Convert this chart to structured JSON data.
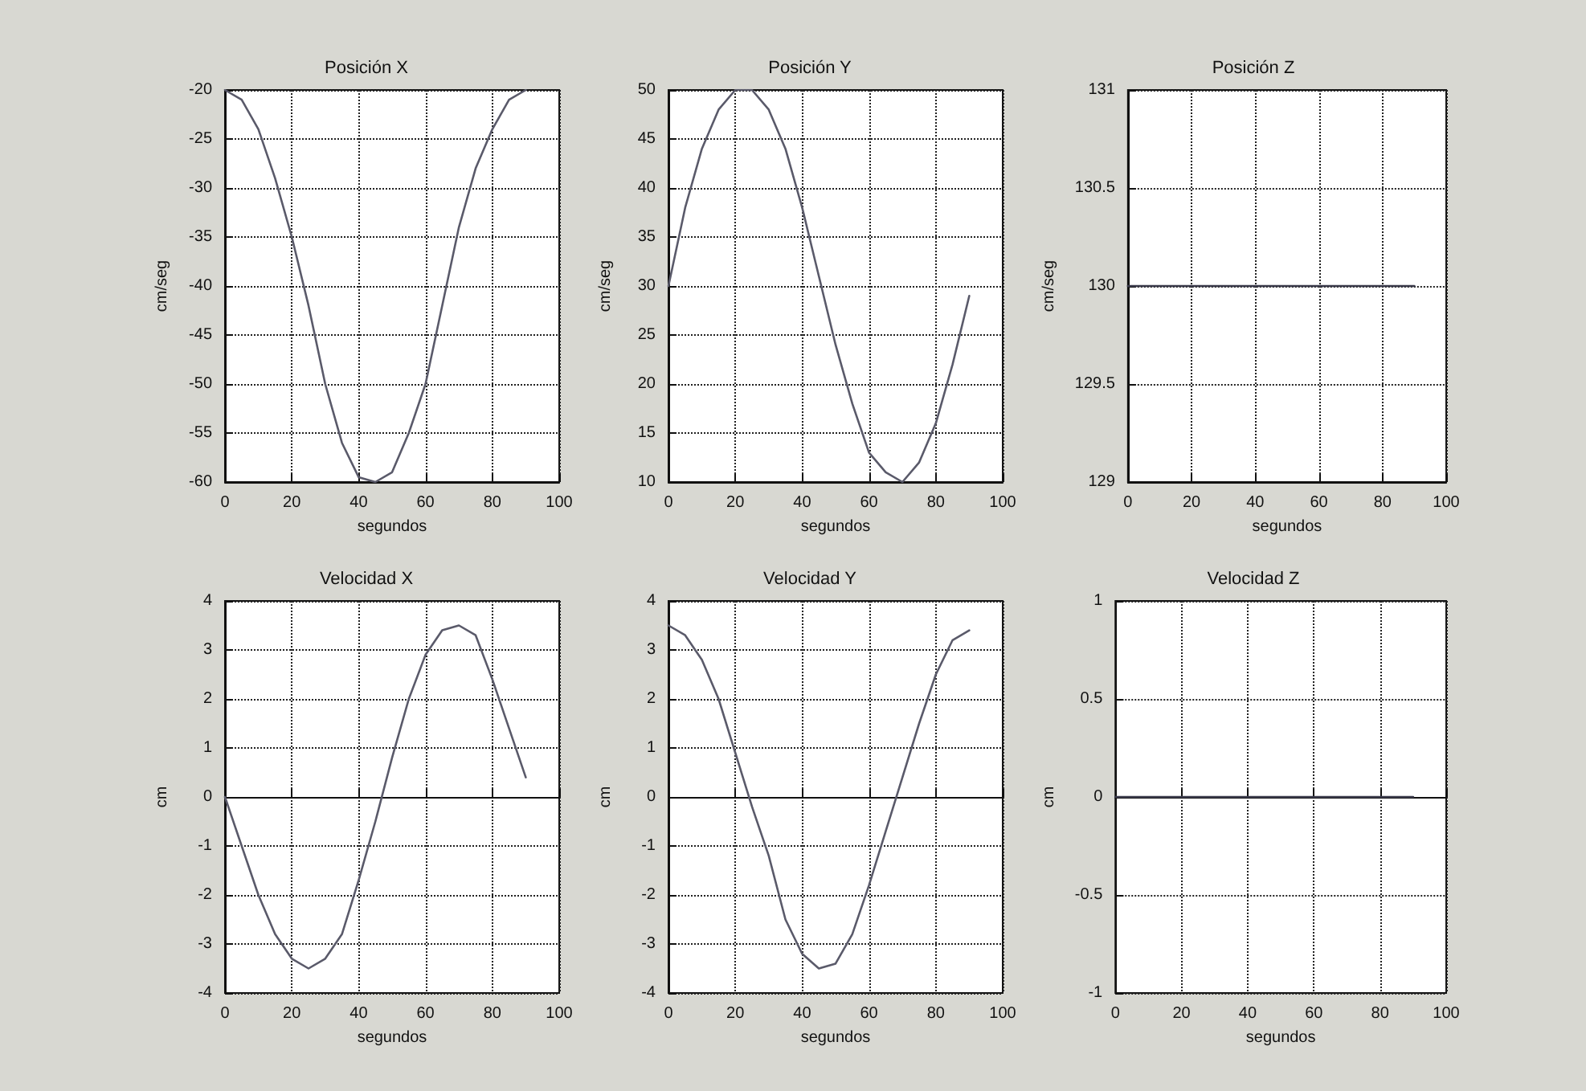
{
  "chart_data": [
    {
      "type": "line",
      "title": "Posición X",
      "xlabel": "segundos",
      "ylabel": "cm/seg",
      "xlim": [
        0,
        100
      ],
      "xticks": [
        0,
        20,
        40,
        60,
        80,
        100
      ],
      "ylim": [
        -60,
        -20
      ],
      "yticks": [
        -60,
        -55,
        -50,
        -45,
        -40,
        -35,
        -30,
        -25,
        -20
      ],
      "grid": true,
      "line_style": "solid",
      "series": [
        {
          "color": "#5a5a6a",
          "x": [
            0,
            5,
            10,
            15,
            20,
            25,
            30,
            35,
            40,
            45,
            50,
            55,
            60,
            65,
            70,
            75,
            80,
            85,
            90
          ],
          "values": [
            -20,
            -21,
            -24,
            -29,
            -35,
            -42,
            -50,
            -56,
            -59.5,
            -60,
            -59,
            -55,
            -50,
            -42,
            -34,
            -28,
            -24,
            -21,
            -20
          ]
        }
      ]
    },
    {
      "type": "line",
      "title": "Posición Y",
      "xlabel": "segundos",
      "ylabel": "cm/seg",
      "xlim": [
        0,
        100
      ],
      "xticks": [
        0,
        20,
        40,
        60,
        80,
        100
      ],
      "ylim": [
        10,
        50
      ],
      "yticks": [
        10,
        15,
        20,
        25,
        30,
        35,
        40,
        45,
        50
      ],
      "grid": true,
      "line_style": "solid",
      "series": [
        {
          "color": "#5a5a6a",
          "x": [
            0,
            5,
            10,
            15,
            20,
            25,
            30,
            35,
            40,
            45,
            50,
            55,
            60,
            65,
            70,
            75,
            80,
            85,
            90
          ],
          "values": [
            30,
            38,
            44,
            48,
            50,
            50,
            48,
            44,
            38,
            31,
            24,
            18,
            13,
            11,
            10,
            12,
            16,
            22,
            29
          ]
        }
      ]
    },
    {
      "type": "line",
      "title": "Posición Z",
      "xlabel": "segundos",
      "ylabel": "cm/seg",
      "xlim": [
        0,
        100
      ],
      "xticks": [
        0,
        20,
        40,
        60,
        80,
        100
      ],
      "ylim": [
        129,
        131
      ],
      "yticks": [
        129,
        129.5,
        130,
        130.5,
        131
      ],
      "grid": true,
      "line_style": "solid",
      "series": [
        {
          "color": "#3a3a4a",
          "x": [
            0,
            90
          ],
          "values": [
            130,
            130
          ]
        }
      ]
    },
    {
      "type": "line",
      "title": "Velocidad X",
      "xlabel": "segundos",
      "ylabel": "cm",
      "xlim": [
        0,
        100
      ],
      "xticks": [
        0,
        20,
        40,
        60,
        80,
        100
      ],
      "ylim": [
        -4,
        4
      ],
      "yticks": [
        -4,
        -3,
        -2,
        -1,
        0,
        1,
        2,
        3,
        4
      ],
      "grid": true,
      "line_style": "solid",
      "series": [
        {
          "color": "#5a5a6a",
          "x": [
            0,
            5,
            10,
            15,
            20,
            25,
            30,
            35,
            40,
            45,
            50,
            55,
            60,
            65,
            70,
            75,
            80,
            85,
            90
          ],
          "values": [
            0,
            -1,
            -2,
            -2.8,
            -3.3,
            -3.5,
            -3.3,
            -2.8,
            -1.7,
            -0.5,
            0.8,
            2,
            2.9,
            3.4,
            3.5,
            3.3,
            2.4,
            1.4,
            0.4
          ]
        }
      ]
    },
    {
      "type": "line",
      "title": "Velocidad Y",
      "xlabel": "segundos",
      "ylabel": "cm",
      "xlim": [
        0,
        100
      ],
      "xticks": [
        0,
        20,
        40,
        60,
        80,
        100
      ],
      "ylim": [
        -4,
        4
      ],
      "yticks": [
        -4,
        -3,
        -2,
        -1,
        0,
        1,
        2,
        3,
        4
      ],
      "grid": true,
      "line_style": "solid",
      "series": [
        {
          "color": "#5a5a6a",
          "x": [
            0,
            5,
            10,
            15,
            20,
            25,
            30,
            35,
            40,
            45,
            50,
            55,
            60,
            65,
            70,
            75,
            80,
            85,
            90
          ],
          "values": [
            3.5,
            3.3,
            2.8,
            2,
            0.9,
            -0.2,
            -1.2,
            -2.5,
            -3.2,
            -3.5,
            -3.4,
            -2.8,
            -1.8,
            -0.7,
            0.4,
            1.5,
            2.5,
            3.2,
            3.4
          ]
        }
      ]
    },
    {
      "type": "line",
      "title": "Velocidad Z",
      "xlabel": "segundos",
      "ylabel": "cm",
      "xlim": [
        0,
        100
      ],
      "xticks": [
        0,
        20,
        40,
        60,
        80,
        100
      ],
      "ylim": [
        -1,
        1
      ],
      "yticks": [
        -1,
        -0.5,
        0,
        0.5,
        1
      ],
      "grid": true,
      "line_style": "solid",
      "series": [
        {
          "color": "#3a3a4a",
          "x": [
            0,
            90
          ],
          "values": [
            0,
            0
          ]
        }
      ]
    }
  ]
}
